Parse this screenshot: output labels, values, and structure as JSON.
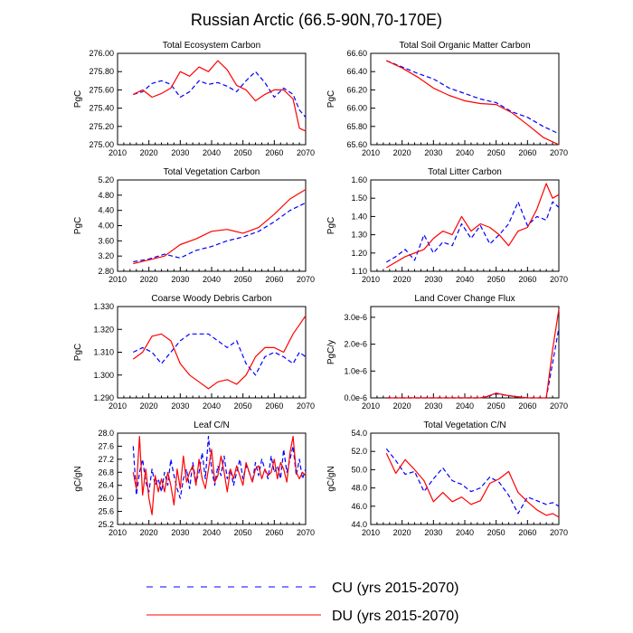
{
  "figure": {
    "title": "Russian Arctic (66.5-90N,70-170E)",
    "legend": {
      "placement": "bottom-center",
      "entries": [
        {
          "label": "CU (yrs 2015-2070)",
          "color": "#0000ff",
          "style": "dashed"
        },
        {
          "label": "DU (yrs 2015-2070)",
          "color": "#ff0000",
          "style": "solid"
        }
      ]
    }
  },
  "chart_data": [
    {
      "type": "line",
      "title": "Total Ecosystem Carbon",
      "xlabel": "",
      "ylabel": "PgC",
      "xlim": [
        2010,
        2070
      ],
      "ylim": [
        275.0,
        276.0
      ],
      "xticks": [
        "2010",
        "2020",
        "2030",
        "2040",
        "2050",
        "2060",
        "2070"
      ],
      "yticks": [
        "275.00",
        "275.20",
        "275.40",
        "275.60",
        "275.80",
        "276.00"
      ],
      "x": [
        2015,
        2018,
        2021,
        2024,
        2027,
        2030,
        2033,
        2036,
        2039,
        2042,
        2045,
        2048,
        2051,
        2054,
        2057,
        2060,
        2063,
        2066,
        2068,
        2070
      ],
      "series": [
        {
          "name": "CU (yrs 2015-2070)",
          "color": "#0000ff",
          "dash": true,
          "values": [
            275.55,
            275.58,
            275.67,
            275.7,
            275.66,
            275.52,
            275.58,
            275.7,
            275.66,
            275.68,
            275.64,
            275.58,
            275.7,
            275.8,
            275.68,
            275.52,
            275.62,
            275.55,
            275.38,
            275.3
          ]
        },
        {
          "name": "DU (yrs 2015-2070)",
          "color": "#ff0000",
          "dash": false,
          "values": [
            275.55,
            275.6,
            275.52,
            275.56,
            275.62,
            275.8,
            275.75,
            275.85,
            275.8,
            275.92,
            275.82,
            275.65,
            275.6,
            275.48,
            275.55,
            275.6,
            275.6,
            275.5,
            275.18,
            275.15
          ]
        }
      ]
    },
    {
      "type": "line",
      "title": "Total Soil Organic Matter Carbon",
      "xlabel": "",
      "ylabel": "PgC",
      "xlim": [
        2010,
        2070
      ],
      "ylim": [
        65.6,
        66.6
      ],
      "xticks": [
        "2010",
        "2020",
        "2030",
        "2040",
        "2050",
        "2060",
        "2070"
      ],
      "yticks": [
        "65.60",
        "65.80",
        "66.00",
        "66.20",
        "66.40",
        "66.60"
      ],
      "x": [
        2015,
        2020,
        2025,
        2030,
        2035,
        2040,
        2045,
        2050,
        2055,
        2060,
        2065,
        2070
      ],
      "series": [
        {
          "name": "CU (yrs 2015-2070)",
          "color": "#0000ff",
          "dash": true,
          "values": [
            66.52,
            66.45,
            66.38,
            66.32,
            66.22,
            66.16,
            66.1,
            66.06,
            65.96,
            65.9,
            65.8,
            65.72
          ]
        },
        {
          "name": "DU (yrs 2015-2070)",
          "color": "#ff0000",
          "dash": false,
          "values": [
            66.52,
            66.44,
            66.34,
            66.22,
            66.14,
            66.08,
            66.05,
            66.04,
            65.95,
            65.82,
            65.68,
            65.6
          ]
        }
      ]
    },
    {
      "type": "line",
      "title": "Total Vegetation Carbon",
      "xlabel": "",
      "ylabel": "PgC",
      "xlim": [
        2010,
        2070
      ],
      "ylim": [
        2.8,
        5.2
      ],
      "xticks": [
        "2010",
        "2020",
        "2030",
        "2040",
        "2050",
        "2060",
        "2070"
      ],
      "yticks": [
        "2.80",
        "3.20",
        "3.60",
        "4.00",
        "4.40",
        "4.80",
        "5.20"
      ],
      "x": [
        2015,
        2020,
        2025,
        2030,
        2035,
        2040,
        2045,
        2050,
        2055,
        2060,
        2065,
        2070
      ],
      "series": [
        {
          "name": "CU (yrs 2015-2070)",
          "color": "#0000ff",
          "dash": true,
          "values": [
            3.05,
            3.12,
            3.25,
            3.15,
            3.35,
            3.45,
            3.6,
            3.7,
            3.85,
            4.1,
            4.4,
            4.6
          ]
        },
        {
          "name": "DU (yrs 2015-2070)",
          "color": "#ff0000",
          "dash": false,
          "values": [
            3.0,
            3.1,
            3.2,
            3.5,
            3.65,
            3.85,
            3.9,
            3.8,
            3.95,
            4.3,
            4.7,
            4.95
          ]
        }
      ]
    },
    {
      "type": "line",
      "title": "Total Litter Carbon",
      "xlabel": "",
      "ylabel": "PgC",
      "xlim": [
        2010,
        2070
      ],
      "ylim": [
        1.1,
        1.6
      ],
      "xticks": [
        "2010",
        "2020",
        "2030",
        "2040",
        "2050",
        "2060",
        "2070"
      ],
      "yticks": [
        "1.10",
        "1.20",
        "1.30",
        "1.40",
        "1.50",
        "1.60"
      ],
      "x": [
        2015,
        2018,
        2021,
        2024,
        2027,
        2030,
        2033,
        2036,
        2039,
        2042,
        2045,
        2048,
        2051,
        2054,
        2057,
        2060,
        2063,
        2066,
        2068,
        2070
      ],
      "series": [
        {
          "name": "CU (yrs 2015-2070)",
          "color": "#0000ff",
          "dash": true,
          "values": [
            1.15,
            1.18,
            1.22,
            1.16,
            1.3,
            1.2,
            1.26,
            1.24,
            1.36,
            1.28,
            1.35,
            1.25,
            1.3,
            1.36,
            1.48,
            1.35,
            1.4,
            1.38,
            1.48,
            1.45
          ]
        },
        {
          "name": "DU (yrs 2015-2070)",
          "color": "#ff0000",
          "dash": false,
          "values": [
            1.12,
            1.15,
            1.18,
            1.2,
            1.22,
            1.28,
            1.32,
            1.3,
            1.4,
            1.32,
            1.36,
            1.34,
            1.3,
            1.24,
            1.32,
            1.34,
            1.44,
            1.58,
            1.5,
            1.52
          ]
        }
      ]
    },
    {
      "type": "line",
      "title": "Coarse Woody Debris Carbon",
      "xlabel": "",
      "ylabel": "PgC",
      "xlim": [
        2010,
        2070
      ],
      "ylim": [
        1.29,
        1.33
      ],
      "xticks": [
        "2010",
        "2020",
        "2030",
        "2040",
        "2050",
        "2060",
        "2070"
      ],
      "yticks": [
        "1.290",
        "1.300",
        "1.310",
        "1.320",
        "1.330"
      ],
      "x": [
        2015,
        2018,
        2021,
        2024,
        2027,
        2030,
        2033,
        2036,
        2039,
        2042,
        2045,
        2048,
        2051,
        2054,
        2057,
        2060,
        2063,
        2066,
        2068,
        2070
      ],
      "series": [
        {
          "name": "CU (yrs 2015-2070)",
          "color": "#0000ff",
          "dash": true,
          "values": [
            1.31,
            1.312,
            1.31,
            1.305,
            1.31,
            1.315,
            1.318,
            1.318,
            1.318,
            1.315,
            1.312,
            1.315,
            1.305,
            1.3,
            1.308,
            1.31,
            1.308,
            1.305,
            1.31,
            1.308
          ]
        },
        {
          "name": "DU (yrs 2015-2070)",
          "color": "#ff0000",
          "dash": false,
          "values": [
            1.307,
            1.31,
            1.317,
            1.318,
            1.315,
            1.305,
            1.3,
            1.297,
            1.294,
            1.297,
            1.298,
            1.296,
            1.3,
            1.308,
            1.312,
            1.312,
            1.31,
            1.318,
            1.322,
            1.326
          ]
        }
      ]
    },
    {
      "type": "line",
      "title": "Land Cover Change Flux",
      "xlabel": "",
      "ylabel": "PgC/y",
      "xlim": [
        2010,
        2070
      ],
      "ylim": [
        0.0,
        3.4e-06
      ],
      "xticks": [
        "2010",
        "2020",
        "2030",
        "2040",
        "2050",
        "2060",
        "2070"
      ],
      "yticks": [
        "0.0e-6",
        "1.0e-6",
        "2.0e-6",
        "3.0e-6"
      ],
      "x": [
        2015,
        2020,
        2025,
        2030,
        2035,
        2040,
        2045,
        2047,
        2050,
        2053,
        2056,
        2060,
        2064,
        2066,
        2068,
        2070
      ],
      "series": [
        {
          "name": "CU (yrs 2015-2070)",
          "color": "#0000ff",
          "dash": true,
          "values": [
            0.0,
            0.0,
            0.0,
            0.0,
            0.0,
            0.0,
            0.0,
            5e-08,
            1.5e-07,
            1e-07,
            5e-08,
            0.0,
            0.0,
            0.0,
            1.3e-06,
            2.6e-06
          ]
        },
        {
          "name": "DU (yrs 2015-2070)",
          "color": "#ff0000",
          "dash": false,
          "values": [
            0.0,
            0.0,
            0.0,
            0.0,
            0.0,
            0.0,
            0.0,
            5e-08,
            1.8e-07,
            1e-07,
            5e-08,
            0.0,
            0.0,
            0.0,
            1.8e-06,
            3.3e-06
          ]
        }
      ]
    },
    {
      "type": "line",
      "title": "Leaf C/N",
      "xlabel": "",
      "ylabel": "gC/gN",
      "xlim": [
        2010,
        2070
      ],
      "ylim": [
        25.2,
        28.0
      ],
      "xticks": [
        "2010",
        "2020",
        "2030",
        "2040",
        "2050",
        "2060",
        "2070"
      ],
      "yticks": [
        "25.2",
        "25.6",
        "26.0",
        "26.4",
        "26.8",
        "27.2",
        "27.6",
        "28.0"
      ],
      "x": [
        2015,
        2016,
        2017,
        2018,
        2019,
        2020,
        2021,
        2022,
        2023,
        2024,
        2025,
        2026,
        2027,
        2028,
        2029,
        2030,
        2031,
        2032,
        2033,
        2034,
        2035,
        2036,
        2037,
        2038,
        2039,
        2040,
        2041,
        2042,
        2043,
        2044,
        2045,
        2046,
        2047,
        2048,
        2049,
        2050,
        2051,
        2052,
        2053,
        2054,
        2055,
        2056,
        2057,
        2058,
        2059,
        2060,
        2061,
        2062,
        2063,
        2064,
        2065,
        2066,
        2067,
        2068,
        2069,
        2070
      ],
      "series": [
        {
          "name": "CU (yrs 2015-2070)",
          "color": "#0000ff",
          "dash": true,
          "values": [
            27.6,
            26.1,
            26.8,
            27.2,
            26.5,
            26.2,
            26.9,
            26.4,
            26.6,
            26.2,
            26.8,
            26.4,
            27.2,
            26.7,
            26.3,
            26.0,
            26.6,
            26.9,
            26.3,
            27.1,
            26.5,
            26.8,
            27.4,
            26.6,
            27.9,
            26.9,
            26.4,
            27.0,
            26.7,
            27.3,
            26.6,
            26.9,
            26.4,
            26.8,
            27.2,
            26.6,
            27.0,
            26.8,
            26.5,
            27.1,
            26.7,
            27.2,
            26.9,
            26.6,
            27.3,
            26.8,
            27.0,
            26.6,
            27.5,
            26.8,
            27.2,
            27.6,
            26.7,
            27.2,
            26.6,
            26.9
          ]
        },
        {
          "name": "DU (yrs 2015-2070)",
          "color": "#ff0000",
          "dash": false,
          "values": [
            26.8,
            26.3,
            27.9,
            26.1,
            26.9,
            26.0,
            25.5,
            26.7,
            26.2,
            26.6,
            26.2,
            26.8,
            26.4,
            25.8,
            26.9,
            26.3,
            27.3,
            26.5,
            26.8,
            27.0,
            26.4,
            27.2,
            26.6,
            26.3,
            26.9,
            27.5,
            26.5,
            26.7,
            27.3,
            26.8,
            26.2,
            26.9,
            26.6,
            27.0,
            26.7,
            26.4,
            27.1,
            26.8,
            26.5,
            26.9,
            27.0,
            26.6,
            26.9,
            26.7,
            26.8,
            27.2,
            26.6,
            27.1,
            26.9,
            26.5,
            27.4,
            27.9,
            26.8,
            26.6,
            26.8,
            26.7
          ]
        }
      ]
    },
    {
      "type": "line",
      "title": "Total Vegetation C/N",
      "xlabel": "",
      "ylabel": "gC/gN",
      "xlim": [
        2010,
        2070
      ],
      "ylim": [
        44.0,
        54.0
      ],
      "xticks": [
        "2010",
        "2020",
        "2030",
        "2040",
        "2050",
        "2060",
        "2070"
      ],
      "yticks": [
        "44.0",
        "46.0",
        "48.0",
        "50.0",
        "52.0",
        "54.0"
      ],
      "x": [
        2015,
        2018,
        2021,
        2024,
        2027,
        2030,
        2033,
        2036,
        2039,
        2042,
        2045,
        2048,
        2051,
        2054,
        2057,
        2060,
        2063,
        2066,
        2068,
        2070
      ],
      "series": [
        {
          "name": "CU (yrs 2015-2070)",
          "color": "#0000ff",
          "dash": true,
          "values": [
            52.3,
            51.0,
            49.5,
            49.8,
            47.6,
            49.0,
            50.2,
            48.8,
            48.4,
            47.6,
            48.0,
            49.2,
            48.6,
            47.2,
            45.2,
            47.0,
            46.6,
            46.2,
            46.4,
            46.0
          ]
        },
        {
          "name": "DU (yrs 2015-2070)",
          "color": "#ff0000",
          "dash": false,
          "values": [
            51.8,
            49.6,
            51.1,
            50.0,
            48.8,
            46.5,
            47.5,
            46.5,
            47.0,
            46.2,
            46.6,
            48.5,
            49.0,
            49.8,
            47.5,
            46.5,
            45.6,
            45.0,
            45.2,
            44.8
          ]
        }
      ]
    }
  ]
}
